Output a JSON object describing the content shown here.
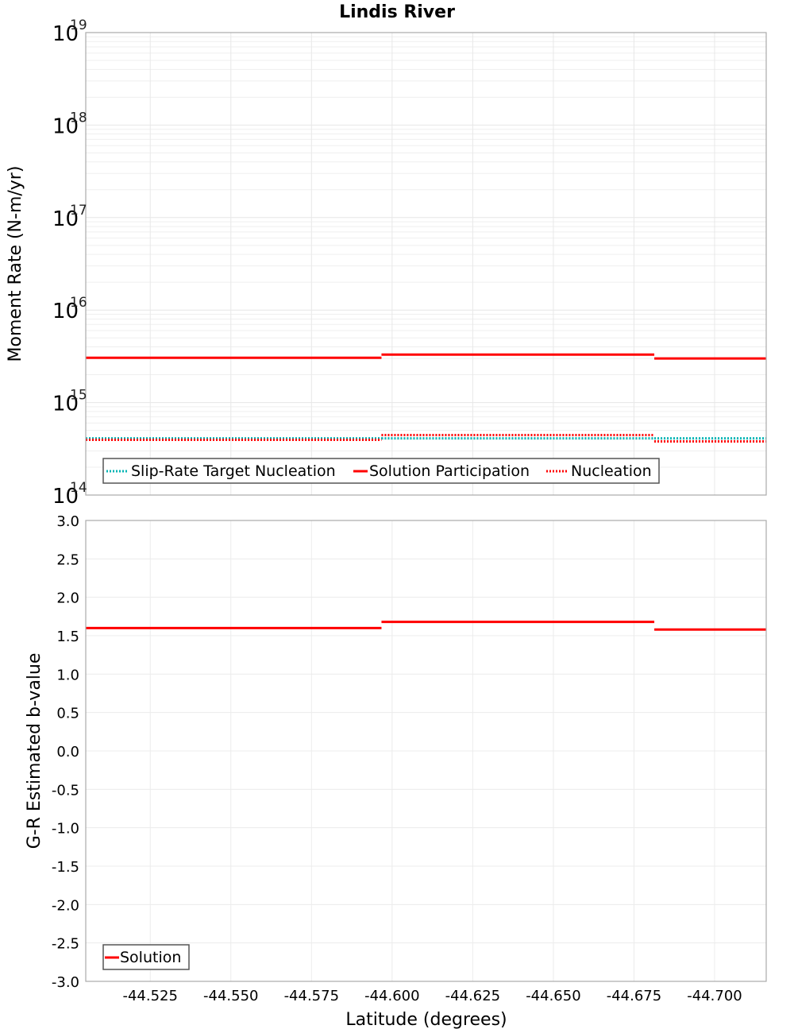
{
  "chart_data": [
    {
      "type": "line",
      "subtype": "step",
      "title": "Lindis River",
      "xlabel": "Latitude (degrees)",
      "ylabel": "Moment Rate (N-m/yr)",
      "yscale": "log",
      "ylim": [
        100000000000000.0,
        1e+19
      ],
      "xlim": [
        -44.505,
        -44.716
      ],
      "x_reversed": true,
      "grid": true,
      "ytick_labels": [
        {
          "base": "10",
          "exp": "14",
          "value": 100000000000000.0
        },
        {
          "base": "10",
          "exp": "15",
          "value": 1000000000000000.0
        },
        {
          "base": "10",
          "exp": "16",
          "value": 1e+16
        },
        {
          "base": "10",
          "exp": "17",
          "value": 1e+17
        },
        {
          "base": "10",
          "exp": "18",
          "value": 1e+18
        },
        {
          "base": "10",
          "exp": "19",
          "value": 1e+19
        }
      ],
      "segments_x": [
        [
          -44.505,
          -44.5967
        ],
        [
          -44.5967,
          -44.6813
        ],
        [
          -44.6813,
          -44.716
        ]
      ],
      "series": [
        {
          "name": "Slip-Rate Target Nucleation",
          "color": "#00b4b4",
          "style": "dotted",
          "values": [
            410000000000000.0,
            410000000000000.0,
            410000000000000.0
          ]
        },
        {
          "name": "Solution Participation",
          "color": "#ff0000",
          "style": "solid",
          "values": [
            3050000000000000.0,
            3300000000000000.0,
            3000000000000000.0
          ]
        },
        {
          "name": "Nucleation",
          "color": "#ff0000",
          "style": "dotted",
          "values": [
            395000000000000.0,
            445000000000000.0,
            380000000000000.0
          ]
        }
      ],
      "legend_position": "lower-left"
    },
    {
      "type": "line",
      "subtype": "step",
      "xlabel": "Latitude (degrees)",
      "ylabel": "G-R Estimated b-value",
      "ylim": [
        -3.0,
        3.0
      ],
      "xlim": [
        -44.505,
        -44.716
      ],
      "x_reversed": true,
      "grid": true,
      "ytick_labels": [
        "3.0",
        "2.5",
        "2.0",
        "1.5",
        "1.0",
        "0.5",
        "0.0",
        "-0.5",
        "-1.0",
        "-1.5",
        "-2.0",
        "-2.5",
        "-3.0"
      ],
      "xtick_labels": [
        "-44.525",
        "-44.550",
        "-44.575",
        "-44.600",
        "-44.625",
        "-44.650",
        "-44.675",
        "-44.700"
      ],
      "segments_x": [
        [
          -44.505,
          -44.5967
        ],
        [
          -44.5967,
          -44.6813
        ],
        [
          -44.6813,
          -44.716
        ]
      ],
      "series": [
        {
          "name": "Solution",
          "color": "#ff0000",
          "style": "solid",
          "values": [
            1.6,
            1.68,
            1.58
          ]
        }
      ],
      "legend_position": "lower-left"
    }
  ],
  "labels": {
    "title": "Lindis River",
    "top_ylabel": "Moment Rate (N-m/yr)",
    "bottom_ylabel": "G-R Estimated b-value",
    "xlabel": "Latitude (degrees)",
    "legend_top": [
      "Slip-Rate Target Nucleation",
      "Solution Participation",
      "Nucleation"
    ],
    "legend_bottom": [
      "Solution"
    ]
  }
}
